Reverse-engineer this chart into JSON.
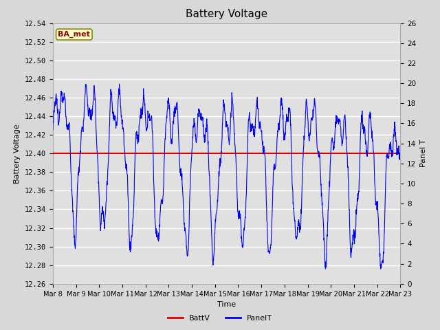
{
  "title": "Battery Voltage",
  "xlabel": "Time",
  "ylabel_left": "Battery Voltage",
  "ylabel_right": "Panel T",
  "batt_v": 12.4,
  "ylim_left": [
    12.26,
    12.54
  ],
  "ylim_right": [
    0,
    26
  ],
  "x_ticks": [
    "Mar 8",
    "Mar 9",
    "Mar 10",
    "Mar 11",
    "Mar 12",
    "Mar 13",
    "Mar 14",
    "Mar 15",
    "Mar 16",
    "Mar 17",
    "Mar 18",
    "Mar 19",
    "Mar 20",
    "Mar 21",
    "Mar 22",
    "Mar 23"
  ],
  "background_color": "#d8d8d8",
  "plot_bg_color": "#e0e0e0",
  "grid_color": "#ffffff",
  "line_color_blue": "#0000ee",
  "line_color_red": "#dd0000",
  "label_box_bg": "#ffffcc",
  "label_box_edge": "#888800",
  "label_text_color": "#990000",
  "title_fontsize": 11,
  "axis_label_fontsize": 8,
  "tick_fontsize": 7.5,
  "legend_fontsize": 8
}
